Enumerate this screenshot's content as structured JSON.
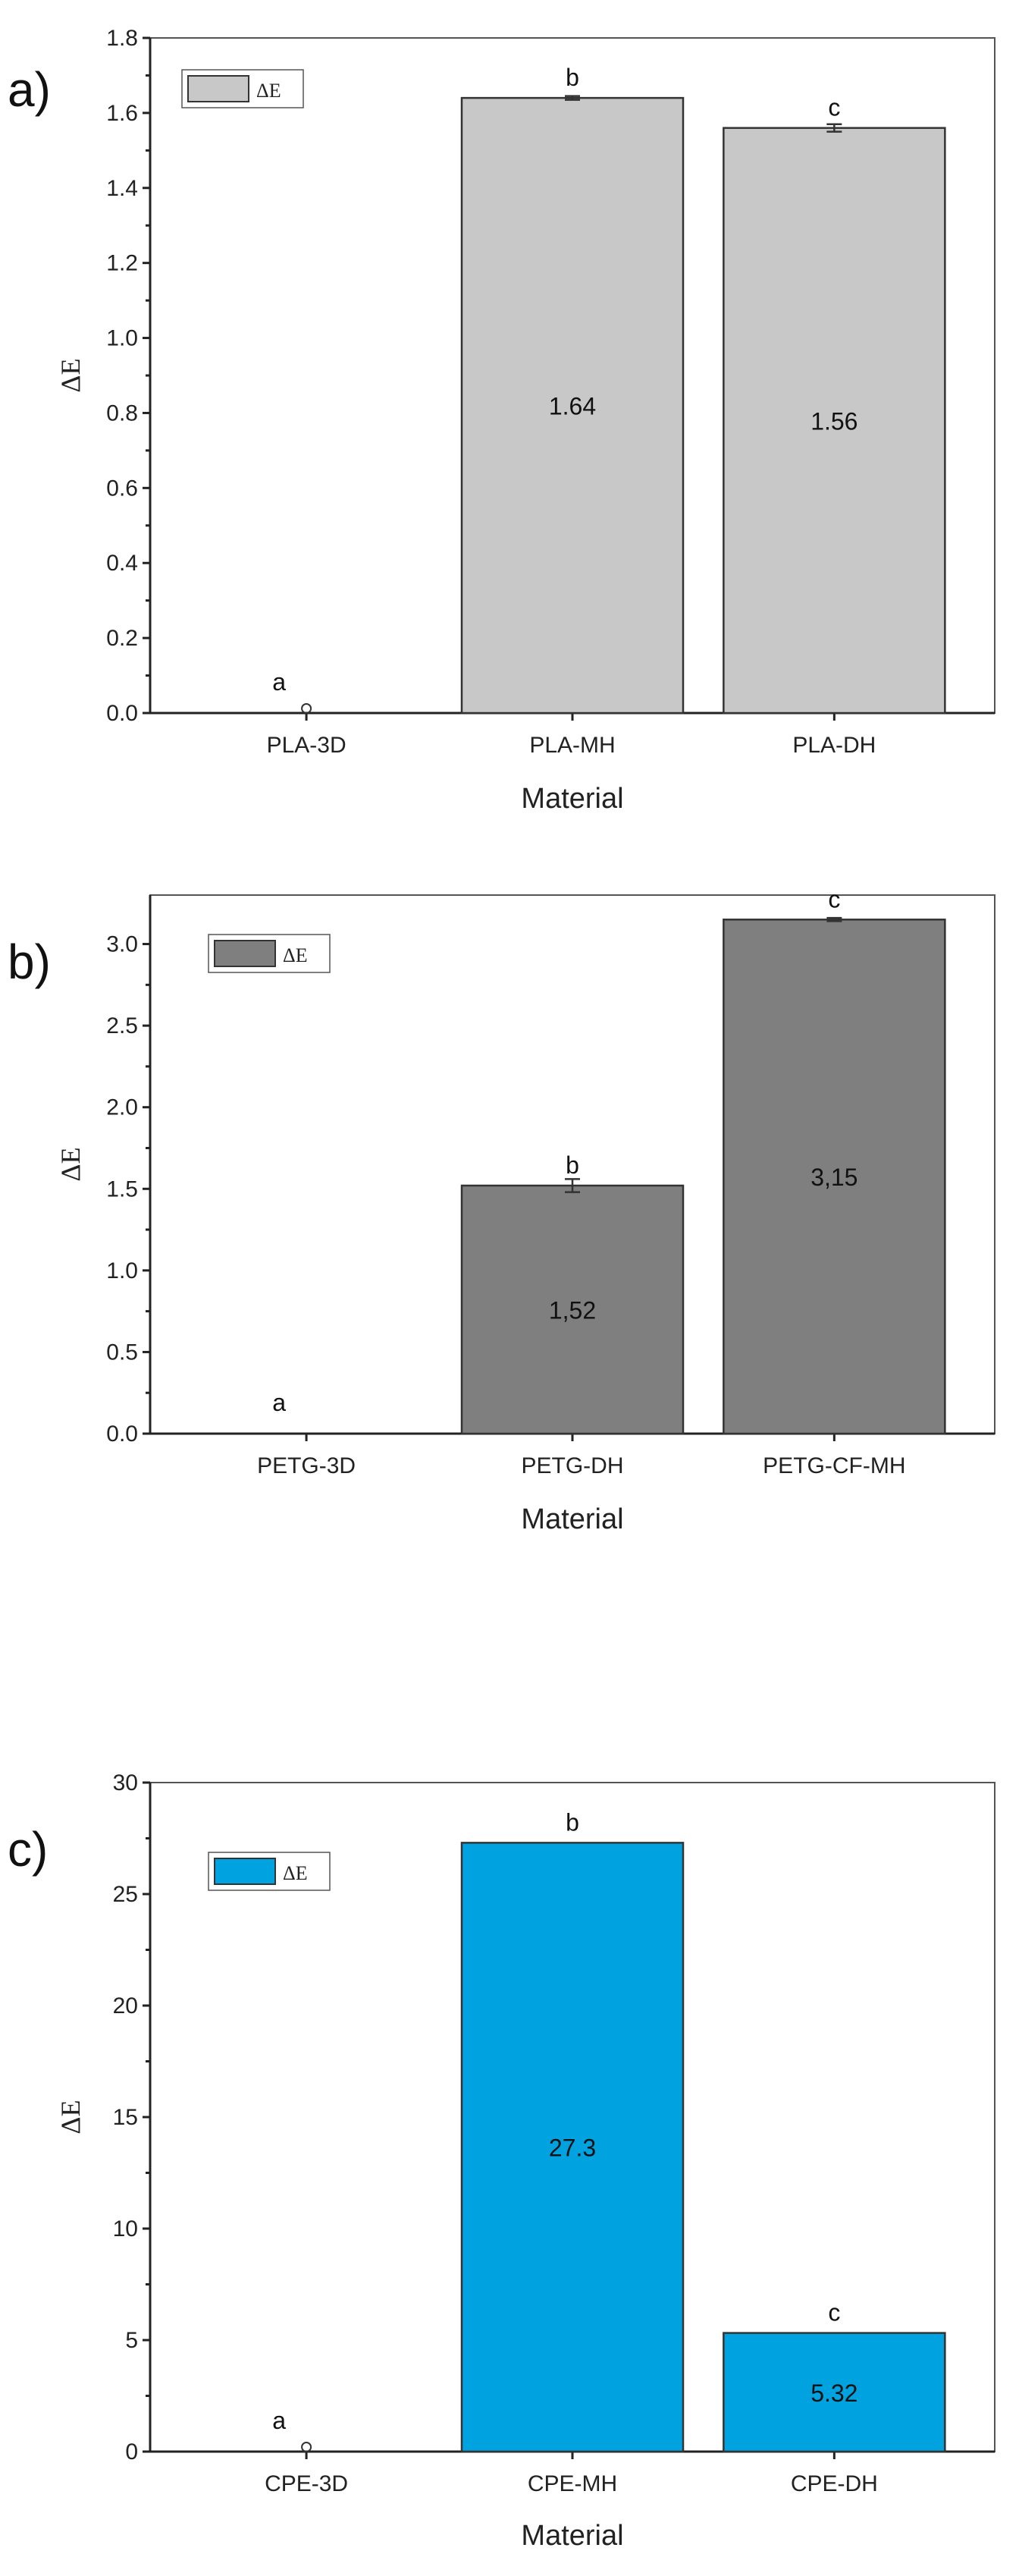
{
  "chart_data": [
    {
      "type": "bar",
      "panel_label": "a)",
      "xlabel": "Material",
      "ylabel": "ΔE",
      "legend": "ΔE",
      "color": "#c8c8c8",
      "ylim": [
        0,
        1.8
      ],
      "yticks": [
        "0.0",
        "0.2",
        "0.4",
        "0.6",
        "0.8",
        "1.0",
        "1.2",
        "1.4",
        "1.6",
        "1.8"
      ],
      "categories": [
        "PLA-3D",
        "PLA-MH",
        "PLA-DH"
      ],
      "values": [
        0,
        1.64,
        1.56
      ],
      "errors": [
        0.0,
        0.005,
        0.01
      ],
      "value_labels": [
        "",
        "1.64",
        "1.56"
      ],
      "letters": [
        "a",
        "b",
        "c"
      ]
    },
    {
      "type": "bar",
      "panel_label": "b)",
      "xlabel": "Material",
      "ylabel": "ΔE",
      "legend": "ΔE",
      "color": "#7f7f7f",
      "ylim": [
        0,
        3.3
      ],
      "yticks": [
        "0.0",
        "0.5",
        "1.0",
        "1.5",
        "2.0",
        "2.5",
        "3.0"
      ],
      "categories": [
        "PETG-3D",
        "PETG-DH",
        "PETG-CF-MH"
      ],
      "values": [
        0,
        1.52,
        3.15
      ],
      "errors": [
        0.0,
        0.04,
        0.01
      ],
      "value_labels": [
        "",
        "1,52",
        "3,15"
      ],
      "letters": [
        "a",
        "b",
        "c"
      ]
    },
    {
      "type": "bar",
      "panel_label": "c)",
      "xlabel": "Material",
      "ylabel": "ΔE",
      "legend": "ΔE",
      "color": "#00a3e0",
      "ylim": [
        0,
        30
      ],
      "yticks": [
        "0",
        "5",
        "10",
        "15",
        "20",
        "25",
        "30"
      ],
      "categories": [
        "CPE-3D",
        "CPE-MH",
        "CPE-DH"
      ],
      "values": [
        0,
        27.3,
        5.32
      ],
      "errors": [
        0.0,
        0.0,
        0.0
      ],
      "value_labels": [
        "",
        "27.3",
        "5.32"
      ],
      "letters": [
        "a",
        "b",
        "c"
      ]
    }
  ]
}
